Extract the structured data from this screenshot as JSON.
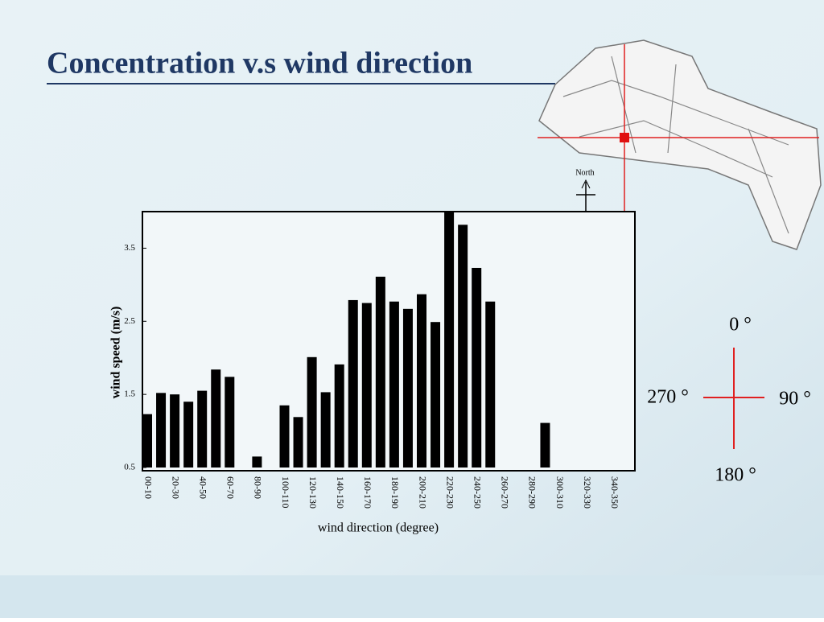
{
  "slide": {
    "title": "Concentration v.s wind direction",
    "north": "North",
    "compass": {
      "top": "0 °",
      "right": "90 °",
      "bottom": "180 °",
      "left": "270 °"
    }
  },
  "chart_data": {
    "type": "bar",
    "x_label": "wind direction (degree)",
    "y_label": "wind speed (m/s)",
    "categories": [
      "00-10",
      null,
      "20-30",
      null,
      "40-50",
      null,
      "60-70",
      null,
      "80-90",
      null,
      "100-110",
      null,
      "120-130",
      null,
      "140-150",
      null,
      "160-170",
      null,
      "180-190",
      null,
      "200-210",
      null,
      "220-230",
      null,
      "240-250",
      null,
      "260-270",
      null,
      "280-290",
      null,
      "300-310",
      null,
      "320-330",
      null,
      "340-350",
      null
    ],
    "values": [
      1.23,
      1.52,
      1.5,
      1.4,
      1.55,
      1.84,
      1.74,
      null,
      0.65,
      null,
      1.35,
      1.19,
      2.01,
      1.53,
      1.91,
      2.79,
      2.75,
      3.11,
      2.77,
      2.67,
      2.87,
      2.49,
      4.0,
      3.82,
      3.23,
      2.77,
      null,
      null,
      null,
      1.11,
      null,
      null,
      null,
      null,
      null,
      null
    ],
    "color": "#000000",
    "ylim": [
      0.5,
      4.0
    ],
    "yticks": [
      0.5,
      1.5,
      2.5,
      3.5
    ],
    "grid": false
  }
}
